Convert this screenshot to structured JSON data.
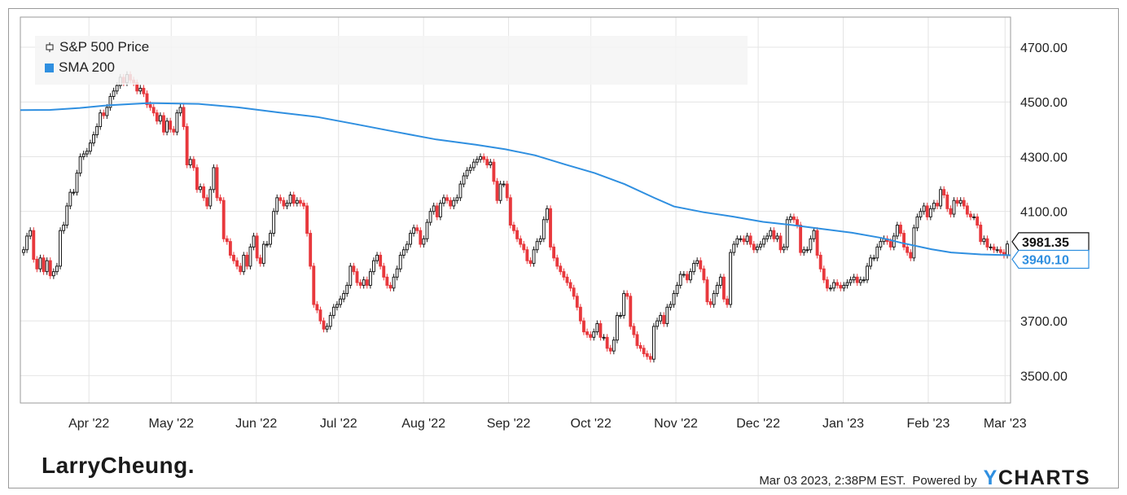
{
  "legend": {
    "price_label": "S&P 500 Price",
    "sma_label": "SMA 200",
    "price_icon": "candlestick-icon",
    "sma_icon": "blue-square-icon"
  },
  "branding": {
    "logo_text": "LarryCheung.",
    "timestamp": "Mar 03 2023, 2:38PM EST.",
    "powered_by": "Powered by",
    "provider_y": "Y",
    "provider_rest": "CHARTS"
  },
  "colors": {
    "up": "#ffffff",
    "down": "#e8383d",
    "wick": "#1a1a1a",
    "sma": "#2f8fe0",
    "grid": "#e4e4e4",
    "axis": "#9a9a9a",
    "text": "#222222"
  },
  "chart_data": {
    "type": "candlestick",
    "title": "",
    "xlabel": "",
    "ylabel": "",
    "ylim": [
      3400,
      4810
    ],
    "xlim": [
      "2022-03-07",
      "2023-03-03"
    ],
    "y_ticks": [
      "4700.00",
      "4500.00",
      "4300.00",
      "4100.00",
      "3700.00",
      "3500.00"
    ],
    "x_ticks": [
      {
        "label": "Apr '22",
        "date": "2022-04-01"
      },
      {
        "label": "May '22",
        "date": "2022-05-01"
      },
      {
        "label": "Jun '22",
        "date": "2022-06-01"
      },
      {
        "label": "Jul '22",
        "date": "2022-07-01"
      },
      {
        "label": "Aug '22",
        "date": "2022-08-01"
      },
      {
        "label": "Sep '22",
        "date": "2022-09-01"
      },
      {
        "label": "Oct '22",
        "date": "2022-10-01"
      },
      {
        "label": "Nov '22",
        "date": "2022-11-01"
      },
      {
        "label": "Dec '22",
        "date": "2022-12-01"
      },
      {
        "label": "Jan '23",
        "date": "2023-01-01"
      },
      {
        "label": "Feb '23",
        "date": "2023-02-01"
      },
      {
        "label": "Mar '23",
        "date": "2023-03-01"
      }
    ],
    "grid": true,
    "legend_position": "top-left",
    "last_price": {
      "value": 3981.35,
      "label": "3981.35"
    },
    "last_sma": {
      "value": 3940.1,
      "label": "3940.10"
    },
    "series": [
      {
        "name": "S&P 500 Price",
        "kind": "candlestick",
        "closes": [
          3960,
          4010,
          4030,
          3925,
          3890,
          3930,
          3880,
          3920,
          3865,
          3880,
          3900,
          4030,
          4050,
          4120,
          4170,
          4170,
          4240,
          4300,
          4310,
          4320,
          4350,
          4380,
          4410,
          4460,
          4450,
          4480,
          4520,
          4540,
          4560,
          4590,
          4570,
          4600,
          4580,
          4570,
          4540,
          4550,
          4530,
          4490,
          4480,
          4460,
          4430,
          4450,
          4390,
          4430,
          4400,
          4390,
          4460,
          4480,
          4410,
          4270,
          4290,
          4260,
          4180,
          4190,
          4150,
          4120,
          4180,
          4260,
          4150,
          4140,
          4000,
          3990,
          3940,
          3920,
          3900,
          3880,
          3940,
          3900,
          3970,
          4010,
          3930,
          3910,
          3980,
          3980,
          4020,
          4100,
          4150,
          4140,
          4120,
          4130,
          4160,
          4130,
          4140,
          4130,
          4120,
          4020,
          3900,
          3760,
          3740,
          3700,
          3670,
          3680,
          3720,
          3750,
          3760,
          3780,
          3800,
          3830,
          3900,
          3880,
          3840,
          3830,
          3850,
          3830,
          3880,
          3920,
          3940,
          3900,
          3860,
          3830,
          3820,
          3860,
          3890,
          3940,
          3960,
          3980,
          4020,
          4040,
          4030,
          3980,
          4000,
          4060,
          4100,
          4120,
          4080,
          4130,
          4150,
          4140,
          4120,
          4140,
          4150,
          4200,
          4230,
          4250,
          4260,
          4280,
          4290,
          4300,
          4290,
          4270,
          4280,
          4210,
          4140,
          4200,
          4200,
          4150,
          4050,
          4030,
          4000,
          3980,
          3960,
          3920,
          3910,
          3960,
          3990,
          4000,
          4070,
          4110,
          3970,
          3930,
          3900,
          3880,
          3860,
          3840,
          3820,
          3790,
          3750,
          3700,
          3660,
          3650,
          3640,
          3660,
          3690,
          3640,
          3640,
          3600,
          3590,
          3630,
          3720,
          3720,
          3800,
          3790,
          3680,
          3650,
          3610,
          3600,
          3580,
          3570,
          3560,
          3680,
          3700,
          3720,
          3690,
          3750,
          3760,
          3800,
          3830,
          3870,
          3870,
          3850,
          3880,
          3910,
          3920,
          3890,
          3850,
          3770,
          3760,
          3800,
          3830,
          3860,
          3780,
          3760,
          3950,
          3980,
          4000,
          4000,
          3990,
          4010,
          3980,
          3960,
          3970,
          3980,
          4000,
          4010,
          4030,
          4000,
          4010,
          3960,
          3970,
          4070,
          4080,
          4070,
          4050,
          3950,
          3960,
          3960,
          4000,
          4030,
          3940,
          3890,
          3850,
          3820,
          3820,
          3840,
          3830,
          3820,
          3830,
          3840,
          3850,
          3860,
          3840,
          3850,
          3850,
          3900,
          3930,
          3930,
          3970,
          3990,
          4000,
          3990,
          3970,
          4010,
          4050,
          4020,
          3970,
          3950,
          3930,
          4040,
          4080,
          4100,
          4120,
          4080,
          4110,
          4130,
          4120,
          4180,
          4160,
          4110,
          4090,
          4140,
          4130,
          4140,
          4120,
          4090,
          4080,
          4080,
          4050,
          3990,
          4000,
          3970,
          3970,
          3960,
          3960,
          3950,
          3940,
          3981
        ]
      },
      {
        "name": "SMA 200",
        "kind": "line",
        "points": [
          [
            0,
            4470
          ],
          [
            0.03,
            4471
          ],
          [
            0.06,
            4478
          ],
          [
            0.09,
            4488
          ],
          [
            0.13,
            4496
          ],
          [
            0.18,
            4493
          ],
          [
            0.22,
            4480
          ],
          [
            0.26,
            4462
          ],
          [
            0.3,
            4445
          ],
          [
            0.34,
            4418
          ],
          [
            0.38,
            4390
          ],
          [
            0.42,
            4363
          ],
          [
            0.46,
            4344
          ],
          [
            0.49,
            4327
          ],
          [
            0.52,
            4305
          ],
          [
            0.55,
            4272
          ],
          [
            0.58,
            4240
          ],
          [
            0.61,
            4200
          ],
          [
            0.64,
            4150
          ],
          [
            0.66,
            4118
          ],
          [
            0.69,
            4097
          ],
          [
            0.72,
            4081
          ],
          [
            0.75,
            4062
          ],
          [
            0.78,
            4050
          ],
          [
            0.81,
            4036
          ],
          [
            0.84,
            4022
          ],
          [
            0.87,
            4003
          ],
          [
            0.89,
            3985
          ],
          [
            0.92,
            3962
          ],
          [
            0.94,
            3950
          ],
          [
            0.97,
            3943
          ],
          [
            1.0,
            3940
          ]
        ]
      }
    ]
  }
}
